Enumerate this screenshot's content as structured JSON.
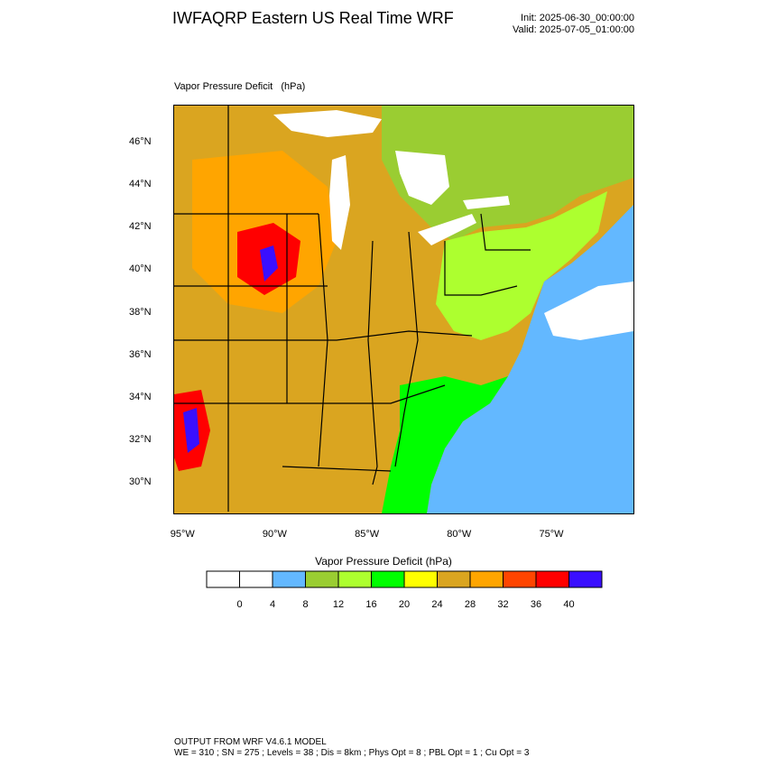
{
  "header": {
    "title": "IWFAQRP Eastern US Real Time WRF",
    "init": "Init: 2025-06-30_00:00:00",
    "valid": "Valid: 2025-07-05_01:00:00"
  },
  "map": {
    "field_label": "Vapor Pressure Deficit   (hPa)",
    "lat_ticks": [
      "46°N",
      "44°N",
      "42°N",
      "40°N",
      "38°N",
      "36°N",
      "34°N",
      "32°N",
      "30°N"
    ],
    "lon_ticks": [
      "95°W",
      "90°W",
      "85°W",
      "80°W",
      "75°W"
    ],
    "lat_range": [
      28.5,
      47.8
    ],
    "lon_range": [
      -95.5,
      -70.5
    ],
    "colors": {
      "water": "#ffffff",
      "border": "#000000"
    }
  },
  "colorbar": {
    "title": "Vapor Pressure Deficit  (hPa)",
    "bins": [
      {
        "color": "#ffffff"
      },
      {
        "color": "#ffffff"
      },
      {
        "color": "#63b8ff"
      },
      {
        "color": "#9acd32"
      },
      {
        "color": "#adff2f"
      },
      {
        "color": "#00ff00"
      },
      {
        "color": "#ffff00"
      },
      {
        "color": "#daa520"
      },
      {
        "color": "#ffa500"
      },
      {
        "color": "#ff4500"
      },
      {
        "color": "#ff0000"
      },
      {
        "color": "#3a0fff"
      }
    ],
    "labels": [
      "0",
      "4",
      "8",
      "12",
      "16",
      "20",
      "24",
      "28",
      "32",
      "36",
      "40"
    ]
  },
  "footer": {
    "line1": "OUTPUT FROM WRF V4.6.1 MODEL",
    "line2": "WE = 310 ; SN = 275 ; Levels = 38 ; Dis = 8km ; Phys Opt = 8 ; PBL Opt = 1 ; Cu Opt = 3"
  }
}
